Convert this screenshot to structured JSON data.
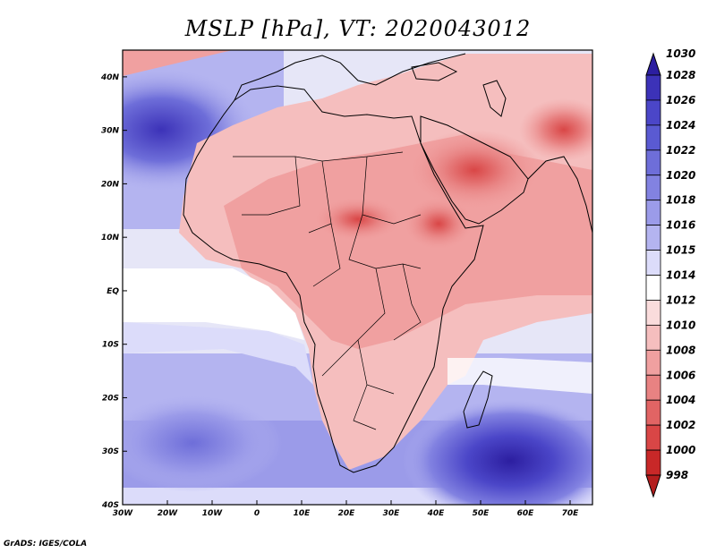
{
  "title": "MSLP [hPa], VT: 2020043012",
  "footer": "GrADS: IGES/COLA",
  "map": {
    "lon_range": [
      -30,
      75
    ],
    "lat_range": [
      -40,
      45
    ],
    "lon_ticks": [
      "30W",
      "20W",
      "10W",
      "0",
      "10E",
      "20E",
      "30E",
      "40E",
      "50E",
      "60E",
      "70E"
    ],
    "lon_values": [
      -30,
      -20,
      -10,
      0,
      10,
      20,
      30,
      40,
      50,
      60,
      70
    ],
    "lat_ticks": [
      "40N",
      "30N",
      "20N",
      "10N",
      "EQ",
      "10S",
      "20S",
      "30S",
      "40S"
    ],
    "lat_values": [
      40,
      30,
      20,
      10,
      0,
      -10,
      -20,
      -30,
      -40
    ],
    "ocean_color": "#e6e6f7",
    "land_color": "#f4a8a8"
  },
  "colorbar": {
    "labels": [
      "1030",
      "1028",
      "1026",
      "1024",
      "1022",
      "1020",
      "1018",
      "1016",
      "1015",
      "1014",
      "1012",
      "1010",
      "1008",
      "1006",
      "1004",
      "1002",
      "1000",
      "998"
    ],
    "colors": [
      "#2c1ea0",
      "#3c32b8",
      "#4b46c8",
      "#5a5ad2",
      "#6e6ed9",
      "#8282e1",
      "#9b9be9",
      "#b4b4f0",
      "#dcdcfa",
      "#ffffff",
      "#fadcdc",
      "#f5bebe",
      "#f0a0a0",
      "#e88282",
      "#e16464",
      "#d94646",
      "#c82828",
      "#b41e1e"
    ]
  }
}
